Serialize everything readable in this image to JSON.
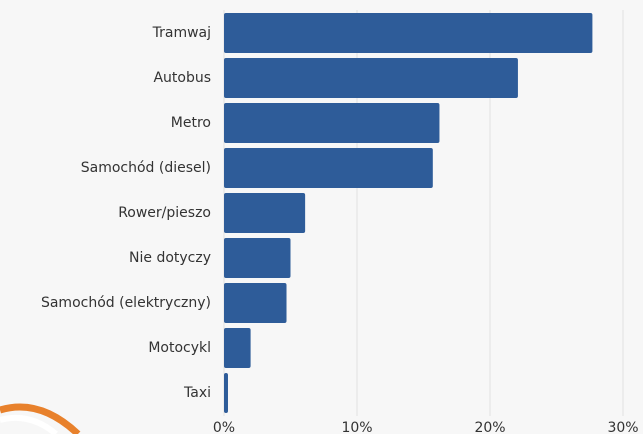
{
  "chart_data": {
    "type": "bar",
    "orientation": "horizontal",
    "categories": [
      "Tramwaj",
      "Autobus",
      "Metro",
      "Samochód (diesel)",
      "Rower/pieszo",
      "Nie dotyczy",
      "Samochód (elektryczny)",
      "Motocykl",
      "Taxi"
    ],
    "values": [
      27.7,
      22.1,
      16.2,
      15.7,
      6.1,
      5.0,
      4.7,
      2.0,
      0.3
    ],
    "color": "#2e5c99",
    "xlim": [
      0,
      30
    ],
    "xticks": [
      {
        "value": 0,
        "label": "0%"
      },
      {
        "value": 10,
        "label": "10%"
      },
      {
        "value": 20,
        "label": "20%"
      },
      {
        "value": 30,
        "label": "30%"
      }
    ],
    "grid": true
  }
}
